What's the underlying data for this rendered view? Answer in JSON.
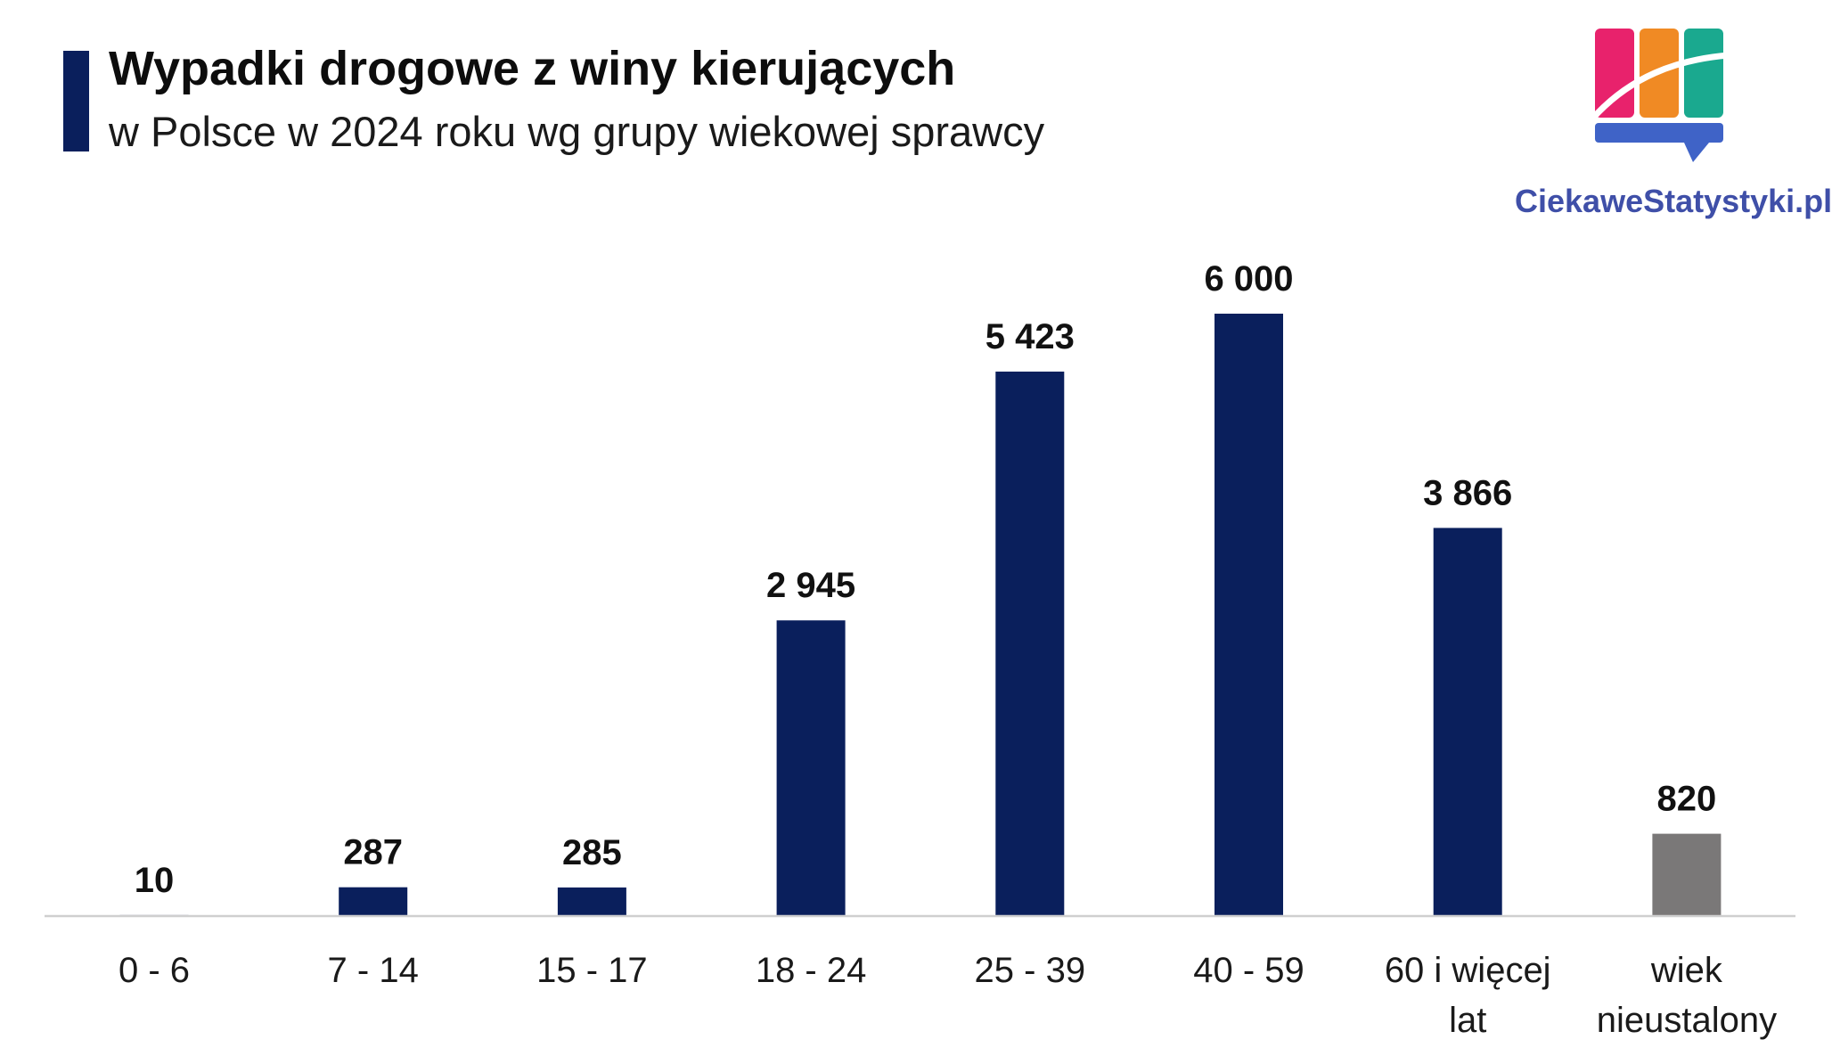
{
  "header": {
    "title": "Wypadki drogowe z winy kierujących",
    "subtitle": "w Polsce w 2024 roku wg grupy wiekowej sprawcy"
  },
  "logo": {
    "text": "CiekaweStatystyki.pl",
    "colors": [
      "#e8226c",
      "#f08a24",
      "#1aa98f",
      "#3f63c7"
    ]
  },
  "colors": {
    "bar": "#0a1f5c",
    "bar_unknown": "#7a7878",
    "axis": "#cfcfcf",
    "title_accent": "#0a1f5c"
  },
  "chart_data": {
    "type": "bar",
    "categories": [
      "0 - 6",
      "7 - 14",
      "15 - 17",
      "18 - 24",
      "25 - 39",
      "40 - 59",
      "60 i więcej lat",
      "wiek nieustalony"
    ],
    "category_lines": [
      [
        "0 - 6"
      ],
      [
        "7 - 14"
      ],
      [
        "15 - 17"
      ],
      [
        "18 - 24"
      ],
      [
        "25 - 39"
      ],
      [
        "40 - 59"
      ],
      [
        "60 i więcej",
        "lat"
      ],
      [
        "wiek",
        "nieustalony"
      ]
    ],
    "values": [
      10,
      287,
      285,
      2945,
      5423,
      6000,
      3866,
      820
    ],
    "value_labels": [
      "10",
      "287",
      "285",
      "2 945",
      "5 423",
      "6 000",
      "3 866",
      "820"
    ],
    "bar_colors": [
      "#0a1f5c",
      "#0a1f5c",
      "#0a1f5c",
      "#0a1f5c",
      "#0a1f5c",
      "#0a1f5c",
      "#0a1f5c",
      "#7a7878"
    ],
    "ylim": [
      0,
      6000
    ],
    "grid": false,
    "legend": "none",
    "title": "Wypadki drogowe z winy kierujących",
    "subtitle": "w Polsce w 2024 roku wg grupy wiekowej sprawcy",
    "xlabel": "",
    "ylabel": ""
  }
}
